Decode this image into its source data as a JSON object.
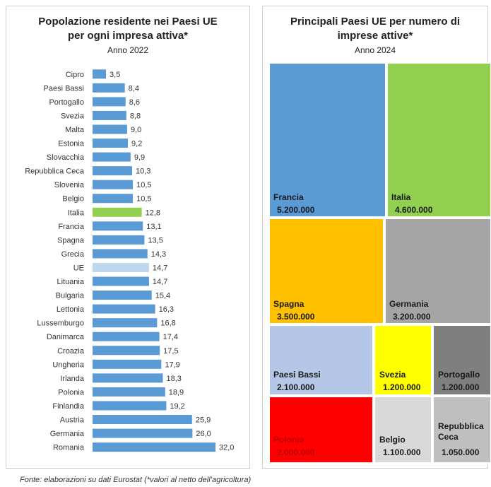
{
  "chart_data": [
    {
      "type": "bar",
      "orientation": "horizontal",
      "title_line1": "Popolazione residente nei Paesi UE",
      "title_line2": "per ogni impresa attiva*",
      "subtitle": "Anno 2022",
      "categories": [
        "Cipro",
        "Paesi Bassi",
        "Portogallo",
        "Svezia",
        "Malta",
        "Estonia",
        "Slovacchia",
        "Repubblica Ceca",
        "Slovenia",
        "Belgio",
        "Italia",
        "Francia",
        "Spagna",
        "Grecia",
        "UE",
        "Lituania",
        "Bulgaria",
        "Lettonia",
        "Lussemburgo",
        "Danimarca",
        "Croazia",
        "Ungheria",
        "Irlanda",
        "Polonia",
        "Finlandia",
        "Austria",
        "Germania",
        "Romania"
      ],
      "values": [
        3.5,
        8.4,
        8.6,
        8.8,
        9.0,
        9.2,
        9.9,
        10.3,
        10.5,
        10.5,
        12.8,
        13.1,
        13.5,
        14.3,
        14.7,
        14.7,
        15.4,
        16.3,
        16.8,
        17.4,
        17.5,
        17.9,
        18.3,
        18.9,
        19.2,
        25.9,
        26.0,
        32.0
      ],
      "value_labels": [
        "3,5",
        "8,4",
        "8,6",
        "8,8",
        "9,0",
        "9,2",
        "9,9",
        "10,3",
        "10,5",
        "10,5",
        "12,8",
        "13,1",
        "13,5",
        "14,3",
        "14,7",
        "14,7",
        "15,4",
        "16,3",
        "16,8",
        "17,4",
        "17,5",
        "17,9",
        "18,3",
        "18,9",
        "19,2",
        "25,9",
        "26,0",
        "32,0"
      ],
      "colors": {
        "default": "#5b9bd5",
        "Italia": "#92d050",
        "UE": "#bdd7ee"
      },
      "xlim": [
        0,
        32
      ],
      "grid": false,
      "legend": "none"
    },
    {
      "type": "treemap",
      "title_line1": "Principali Paesi UE per numero di",
      "title_line2": "imprese attive*",
      "subtitle": "Anno 2024",
      "items": [
        {
          "name": "Francia",
          "value": 5200000,
          "label": "5.200.000",
          "color": "#5b9bd5"
        },
        {
          "name": "Italia",
          "value": 4600000,
          "label": "4.600.000",
          "color": "#92d050"
        },
        {
          "name": "Spagna",
          "value": 3500000,
          "label": "3.500.000",
          "color": "#ffc000"
        },
        {
          "name": "Germania",
          "value": 3200000,
          "label": "3.200.000",
          "color": "#a5a5a5"
        },
        {
          "name": "Paesi Bassi",
          "value": 2100000,
          "label": "2.100.000",
          "color": "#b4c7e7"
        },
        {
          "name": "Svezia",
          "value": 1200000,
          "label": "1.200.000",
          "color": "#ffff00"
        },
        {
          "name": "Portogallo",
          "value": 1200000,
          "label": "1.200.000",
          "color": "#7f7f7f"
        },
        {
          "name": "Polonia",
          "value": 2000000,
          "label": "2.000.000",
          "color": "#ff0000"
        },
        {
          "name": "Belgio",
          "value": 1100000,
          "label": "1.100.000",
          "color": "#d9d9d9"
        },
        {
          "name": "Repubblica Ceca",
          "value": 1050000,
          "label": "1.050.000",
          "color": "#bfbfbf",
          "name_line1": "Repubblica",
          "name_line2": "Ceca"
        }
      ]
    }
  ],
  "source_note": "Fonte: elaborazioni su dati Eurostat (*valori al netto dell’agricoltura)"
}
